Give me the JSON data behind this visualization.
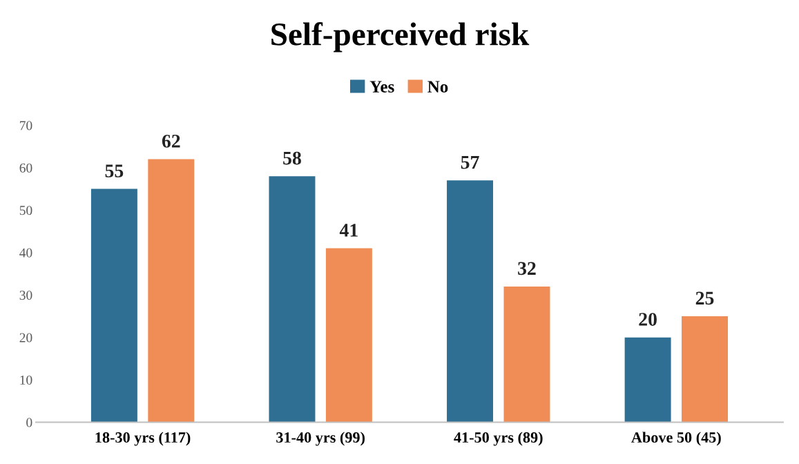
{
  "chart_data": {
    "type": "bar",
    "title": "Self-perceived risk",
    "categories": [
      "18-30 yrs (117)",
      "31-40 yrs (99)",
      "41-50 yrs (89)",
      "Above 50 (45)"
    ],
    "series": [
      {
        "name": "Yes",
        "color": "#2e6f93",
        "values": [
          55,
          58,
          57,
          20
        ]
      },
      {
        "name": "No",
        "color": "#f08c55",
        "values": [
          62,
          41,
          32,
          25
        ]
      }
    ],
    "ylim": [
      0,
      70
    ],
    "yticks": [
      0,
      10,
      20,
      30,
      40,
      50,
      60,
      70
    ],
    "grid": false,
    "legend": "top",
    "data_labels": true
  }
}
